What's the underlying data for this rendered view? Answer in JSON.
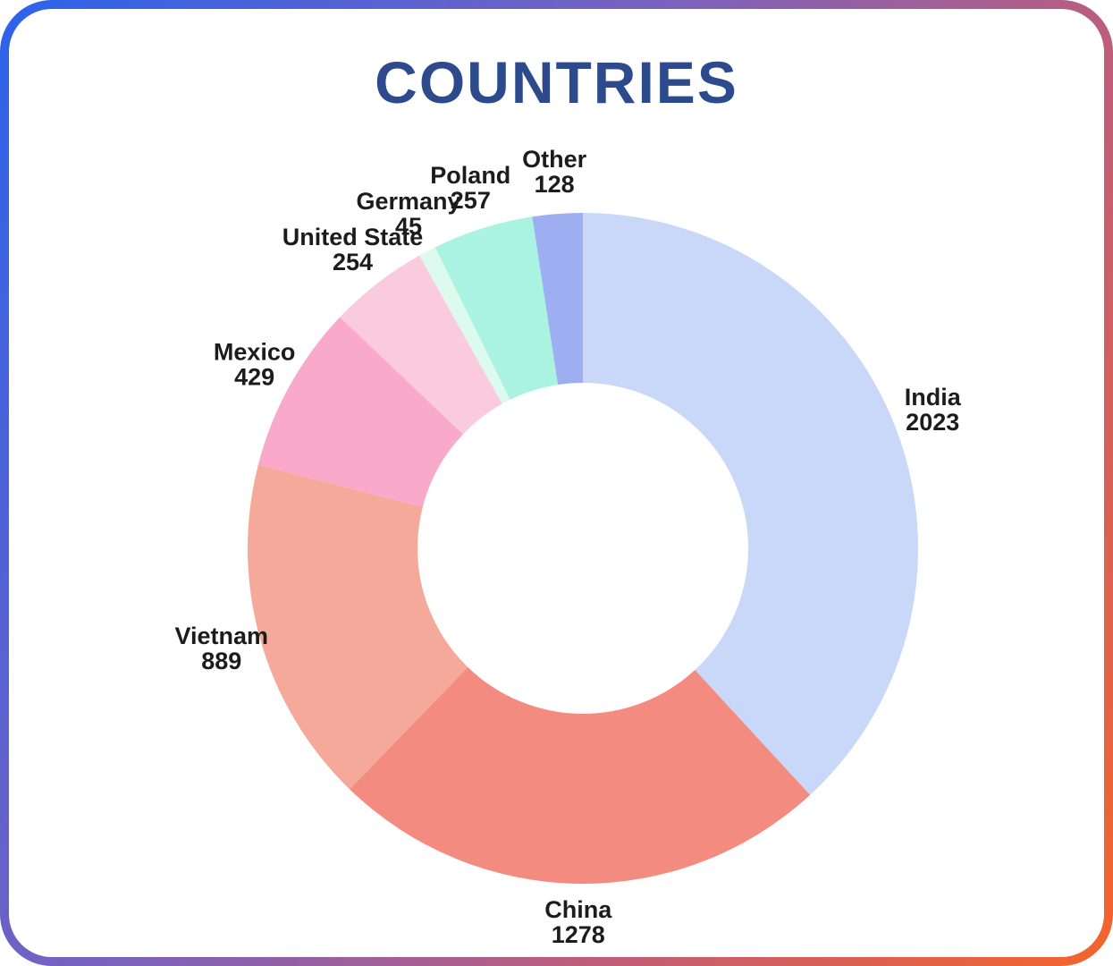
{
  "title": "COUNTRIES",
  "title_color": "#2C4A8C",
  "card": {
    "background": "#FFFFFF",
    "border_gradient": [
      "#2B63EB",
      "#7A62BE",
      "#C25D77",
      "#F4652A"
    ]
  },
  "chart_data": {
    "type": "pie",
    "subtype": "donut",
    "title": "COUNTRIES",
    "start_angle_deg": 0,
    "direction": "clockwise",
    "legend_position": "outside-labels",
    "slices": [
      {
        "label": "India",
        "value": 2023,
        "color": "#C9D7F8"
      },
      {
        "label": "China",
        "value": 1278,
        "color": "#F48B80"
      },
      {
        "label": "Vietnam",
        "value": 889,
        "color": "#F5A99B"
      },
      {
        "label": "Mexico",
        "value": 429,
        "color": "#F9A9C9"
      },
      {
        "label": "United State",
        "value": 254,
        "color": "#FACBDF"
      },
      {
        "label": "Germany",
        "value": 45,
        "color": "#DDFAEF"
      },
      {
        "label": "Poland",
        "value": 257,
        "color": "#AAF3E1"
      },
      {
        "label": "Other",
        "value": 128,
        "color": "#9DAFF1"
      }
    ]
  }
}
